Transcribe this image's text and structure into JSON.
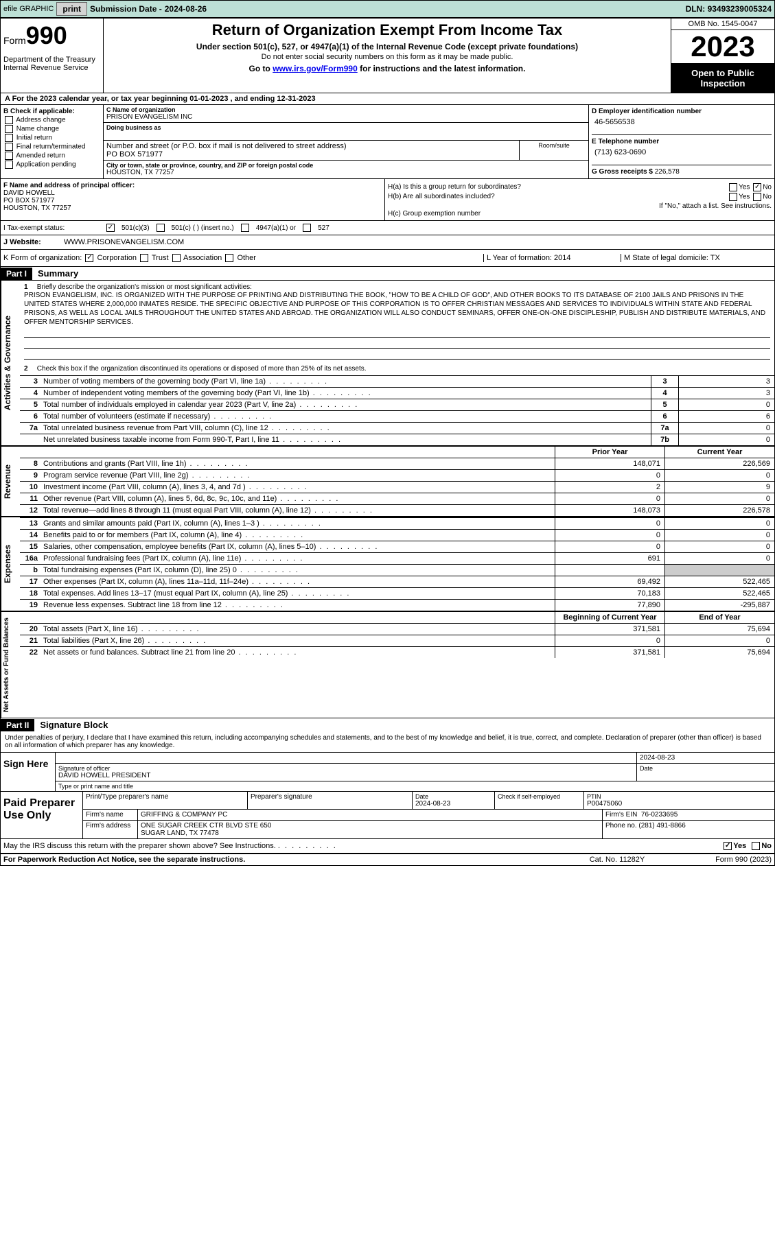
{
  "topbar": {
    "efile": "efile GRAPHIC",
    "print": "print",
    "sub_label": "Submission Date - ",
    "sub_date": "2024-08-26",
    "dln_label": "DLN: ",
    "dln": "93493239005324"
  },
  "header": {
    "form_label": "Form",
    "form_num": "990",
    "dept": "Department of the Treasury\nInternal Revenue Service",
    "title": "Return of Organization Exempt From Income Tax",
    "subtitle": "Under section 501(c), 527, or 4947(a)(1) of the Internal Revenue Code (except private foundations)",
    "instr1": "Do not enter social security numbers on this form as it may be made public.",
    "instr2": "Go to ",
    "instr2_link": "www.irs.gov/Form990",
    "instr2_end": " for instructions and the latest information.",
    "omb": "OMB No. 1545-0047",
    "year": "2023",
    "open": "Open to Public Inspection"
  },
  "row_a": "A For the 2023 calendar year, or tax year beginning 01-01-2023    , and ending 12-31-2023",
  "box_b": {
    "hdr": "B Check if applicable:",
    "items": [
      "Address change",
      "Name change",
      "Initial return",
      "Final return/terminated",
      "Amended return",
      "Application pending"
    ]
  },
  "box_c": {
    "name_lbl": "C Name of organization",
    "name": "PRISON EVANGELISM INC",
    "dba_lbl": "Doing business as",
    "addr_lbl": "Number and street (or P.O. box if mail is not delivered to street address)",
    "room_lbl": "Room/suite",
    "addr": "PO BOX 571977",
    "city_lbl": "City or town, state or province, country, and ZIP or foreign postal code",
    "city": "HOUSTON, TX  77257"
  },
  "box_d": {
    "hdr": "D Employer identification number",
    "val": "46-5656538",
    "e_hdr": "E Telephone number",
    "e_val": "(713) 623-0690",
    "g_hdr": "G Gross receipts $ ",
    "g_val": "226,578"
  },
  "box_f": {
    "hdr": "F Name and address of principal officer:",
    "l1": "DAVID HOWELL",
    "l2": "PO BOX 571977",
    "l3": "HOUSTON, TX  77257"
  },
  "box_h": {
    "a": "H(a)  Is this a group return for subordinates?",
    "b": "H(b)  Are all subordinates included?",
    "note": "If \"No,\" attach a list. See instructions.",
    "c": "H(c)  Group exemption number "
  },
  "tax": {
    "lbl": "I    Tax-exempt status:",
    "o1": "501(c)(3)",
    "o2": "501(c) (  ) (insert no.)",
    "o3": "4947(a)(1) or",
    "o4": "527"
  },
  "website": {
    "lbl": "J   Website: ",
    "val": "WWW.PRISONEVANGELISM.COM"
  },
  "kl": {
    "k": "K Form of organization:",
    "k_opts": [
      "Corporation",
      "Trust",
      "Association",
      "Other"
    ],
    "l": "L Year of formation: 2014",
    "m": "M State of legal domicile: TX"
  },
  "part1": {
    "hdr": "Part I",
    "title": "Summary",
    "mission_lbl": "Briefly describe the organization's mission or most significant activities:",
    "mission": "PRISON EVANGELISM, INC. IS ORGANIZED WITH THE PURPOSE OF PRINTING AND DISTRIBUTING THE BOOK, \"HOW TO BE A CHILD OF GOD\", AND OTHER BOOKS TO ITS DATABASE OF 2100 JAILS AND PRISONS IN THE UNITED STATES WHERE 2,000,000 INMATES RESIDE. THE SPECIFIC OBJECTIVE AND PURPOSE OF THIS CORPORATION IS TO OFFER CHRISTIAN MESSAGES AND SERVICES TO INDIVIDUALS WITHIN STATE AND FEDERAL PRISONS, AS WELL AS LOCAL JAILS THROUGHOUT THE UNITED STATES AND ABROAD. THE ORGANIZATION WILL ALSO CONDUCT SEMINARS, OFFER ONE-ON-ONE DISCIPLESHIP, PUBLISH AND DISTRIBUTE MATERIALS, AND OFFER MENTORSHIP SERVICES.",
    "line2": "Check this box      if the organization discontinued its operations or disposed of more than 25% of its net assets.",
    "lines": [
      {
        "n": "3",
        "t": "Number of voting members of the governing body (Part VI, line 1a)",
        "bn": "3",
        "bv": "3"
      },
      {
        "n": "4",
        "t": "Number of independent voting members of the governing body (Part VI, line 1b)",
        "bn": "4",
        "bv": "3"
      },
      {
        "n": "5",
        "t": "Total number of individuals employed in calendar year 2023 (Part V, line 2a)",
        "bn": "5",
        "bv": "0"
      },
      {
        "n": "6",
        "t": "Total number of volunteers (estimate if necessary)",
        "bn": "6",
        "bv": "6"
      },
      {
        "n": "7a",
        "t": "Total unrelated business revenue from Part VIII, column (C), line 12",
        "bn": "7a",
        "bv": "0"
      },
      {
        "n": "",
        "t": "Net unrelated business taxable income from Form 990-T, Part I, line 11",
        "bn": "7b",
        "bv": "0"
      }
    ],
    "col_hdr": {
      "c1": "Prior Year",
      "c2": "Current Year"
    },
    "revenue": [
      {
        "n": "8",
        "t": "Contributions and grants (Part VIII, line 1h)",
        "c1": "148,071",
        "c2": "226,569"
      },
      {
        "n": "9",
        "t": "Program service revenue (Part VIII, line 2g)",
        "c1": "0",
        "c2": "0"
      },
      {
        "n": "10",
        "t": "Investment income (Part VIII, column (A), lines 3, 4, and 7d )",
        "c1": "2",
        "c2": "9"
      },
      {
        "n": "11",
        "t": "Other revenue (Part VIII, column (A), lines 5, 6d, 8c, 9c, 10c, and 11e)",
        "c1": "0",
        "c2": "0"
      },
      {
        "n": "12",
        "t": "Total revenue—add lines 8 through 11 (must equal Part VIII, column (A), line 12)",
        "c1": "148,073",
        "c2": "226,578"
      }
    ],
    "expenses": [
      {
        "n": "13",
        "t": "Grants and similar amounts paid (Part IX, column (A), lines 1–3 )",
        "c1": "0",
        "c2": "0"
      },
      {
        "n": "14",
        "t": "Benefits paid to or for members (Part IX, column (A), line 4)",
        "c1": "0",
        "c2": "0"
      },
      {
        "n": "15",
        "t": "Salaries, other compensation, employee benefits (Part IX, column (A), lines 5–10)",
        "c1": "0",
        "c2": "0"
      },
      {
        "n": "16a",
        "t": "Professional fundraising fees (Part IX, column (A), line 11e)",
        "c1": "691",
        "c2": "0"
      },
      {
        "n": "b",
        "t": "Total fundraising expenses (Part IX, column (D), line 25) 0",
        "c1": "",
        "c2": "",
        "grey": true
      },
      {
        "n": "17",
        "t": "Other expenses (Part IX, column (A), lines 11a–11d, 11f–24e)",
        "c1": "69,492",
        "c2": "522,465"
      },
      {
        "n": "18",
        "t": "Total expenses. Add lines 13–17 (must equal Part IX, column (A), line 25)",
        "c1": "70,183",
        "c2": "522,465"
      },
      {
        "n": "19",
        "t": "Revenue less expenses. Subtract line 18 from line 12",
        "c1": "77,890",
        "c2": "-295,887"
      }
    ],
    "net_hdr": {
      "c1": "Beginning of Current Year",
      "c2": "End of Year"
    },
    "net": [
      {
        "n": "20",
        "t": "Total assets (Part X, line 16)",
        "c1": "371,581",
        "c2": "75,694"
      },
      {
        "n": "21",
        "t": "Total liabilities (Part X, line 26)",
        "c1": "0",
        "c2": "0"
      },
      {
        "n": "22",
        "t": "Net assets or fund balances. Subtract line 21 from line 20",
        "c1": "371,581",
        "c2": "75,694"
      }
    ]
  },
  "part2": {
    "hdr": "Part II",
    "title": "Signature Block",
    "text": "Under penalties of perjury, I declare that I have examined this return, including accompanying schedules and statements, and to the best of my knowledge and belief, it is true, correct, and complete. Declaration of preparer (other than officer) is based on all information of which preparer has any knowledge."
  },
  "sign": {
    "hdr": "Sign Here",
    "date": "2024-08-23",
    "sig_lbl": "Signature of officer",
    "name": "DAVID HOWELL PRESIDENT",
    "name_lbl": "Type or print name and title",
    "date_lbl": "Date"
  },
  "paid": {
    "hdr": "Paid Preparer Use Only",
    "r1": {
      "a": "Print/Type preparer's name",
      "b": "Preparer's signature",
      "c": "Date",
      "cv": "2024-08-23",
      "d": "Check      if self-employed",
      "e": "PTIN",
      "ev": "P00475060"
    },
    "r2": {
      "a": "Firm's name",
      "av": "GRIFFING & COMPANY PC",
      "b": "Firm's EIN",
      "bv": "76-0233695"
    },
    "r3": {
      "a": "Firm's address",
      "av": "ONE SUGAR CREEK CTR BLVD STE 650",
      "av2": "SUGAR LAND, TX  77478",
      "b": "Phone no.",
      "bv": "(281) 491-8866"
    }
  },
  "discuss": "May the IRS discuss this return with the preparer shown above? See Instructions.",
  "footer": {
    "l": "For Paperwork Reduction Act Notice, see the separate instructions.",
    "c": "Cat. No. 11282Y",
    "r": "Form 990 (2023)"
  },
  "yes": "Yes",
  "no": "No"
}
